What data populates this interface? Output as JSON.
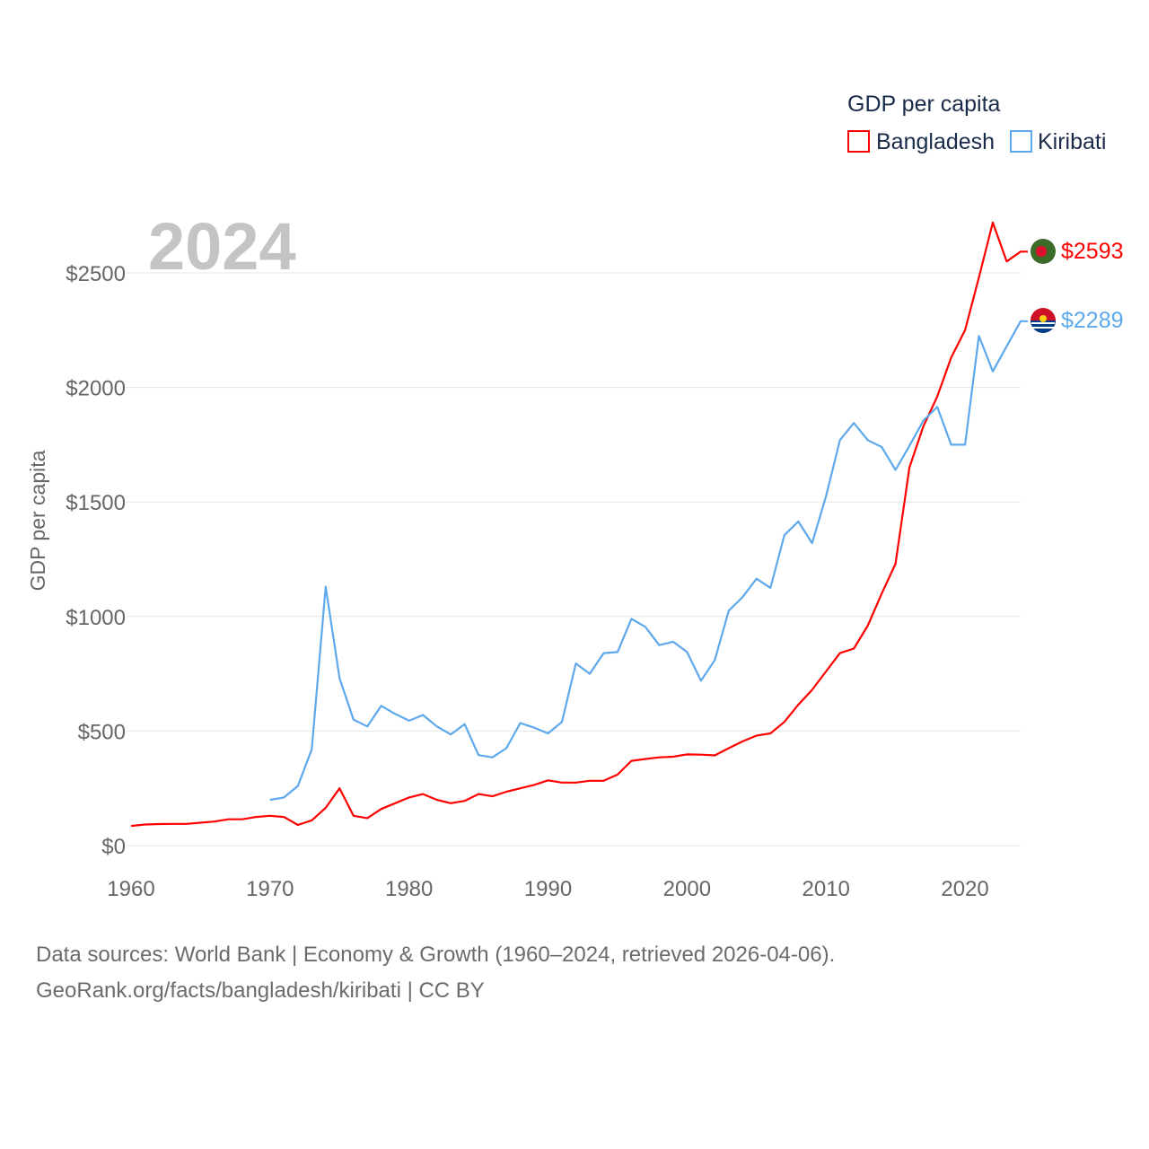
{
  "chart_data": {
    "type": "line",
    "title": "GDP per capita",
    "year_label": "2024",
    "xlabel": "",
    "ylabel": "GDP per capita",
    "xlim": [
      1960,
      2024
    ],
    "ylim": [
      0,
      2800
    ],
    "x_ticks": [
      1960,
      1970,
      1980,
      1990,
      2000,
      2010,
      2020
    ],
    "y_ticks": [
      0,
      500,
      1000,
      1500,
      2000,
      2500
    ],
    "y_tick_labels": [
      "$0",
      "$500",
      "$1000",
      "$1500",
      "$2000",
      "$2500"
    ],
    "grid": true,
    "legend": {
      "title": "GDP per capita",
      "placement": "top-right"
    },
    "series": [
      {
        "name": "Bangladesh",
        "color": "#ff0000",
        "end_label": "$2593",
        "x_start": 1960,
        "values": [
          86,
          92,
          94,
          95,
          95,
          100,
          105,
          115,
          115,
          125,
          130,
          125,
          90,
          110,
          165,
          250,
          130,
          120,
          160,
          185,
          210,
          225,
          200,
          185,
          195,
          225,
          215,
          235,
          250,
          265,
          285,
          275,
          275,
          283,
          283,
          310,
          370,
          378,
          385,
          388,
          398,
          397,
          394,
          425,
          455,
          480,
          490,
          540,
          615,
          680,
          760,
          840,
          860,
          960,
          1100,
          1230,
          1650,
          1830,
          1960,
          2130,
          2250,
          2480,
          2720,
          2550,
          2593
        ]
      },
      {
        "name": "Kiribati",
        "color": "#5ea8ec",
        "end_label": "$2289",
        "x_start": 1970,
        "values": [
          200,
          210,
          260,
          420,
          1130,
          730,
          550,
          520,
          610,
          575,
          545,
          570,
          520,
          485,
          530,
          395,
          385,
          425,
          535,
          515,
          490,
          540,
          795,
          750,
          840,
          845,
          990,
          955,
          875,
          890,
          845,
          720,
          810,
          1025,
          1085,
          1165,
          1125,
          1355,
          1415,
          1320,
          1525,
          1770,
          1845,
          1770,
          1740,
          1640,
          1745,
          1855,
          1915,
          1750,
          1750,
          2225,
          2070,
          2180,
          2289
        ]
      }
    ]
  },
  "footer": {
    "line1": "Data sources: World Bank | Economy & Growth (1960–2024, retrieved 2026-04-06).",
    "line2": "GeoRank.org/facts/bangladesh/kiribati | CC BY"
  }
}
